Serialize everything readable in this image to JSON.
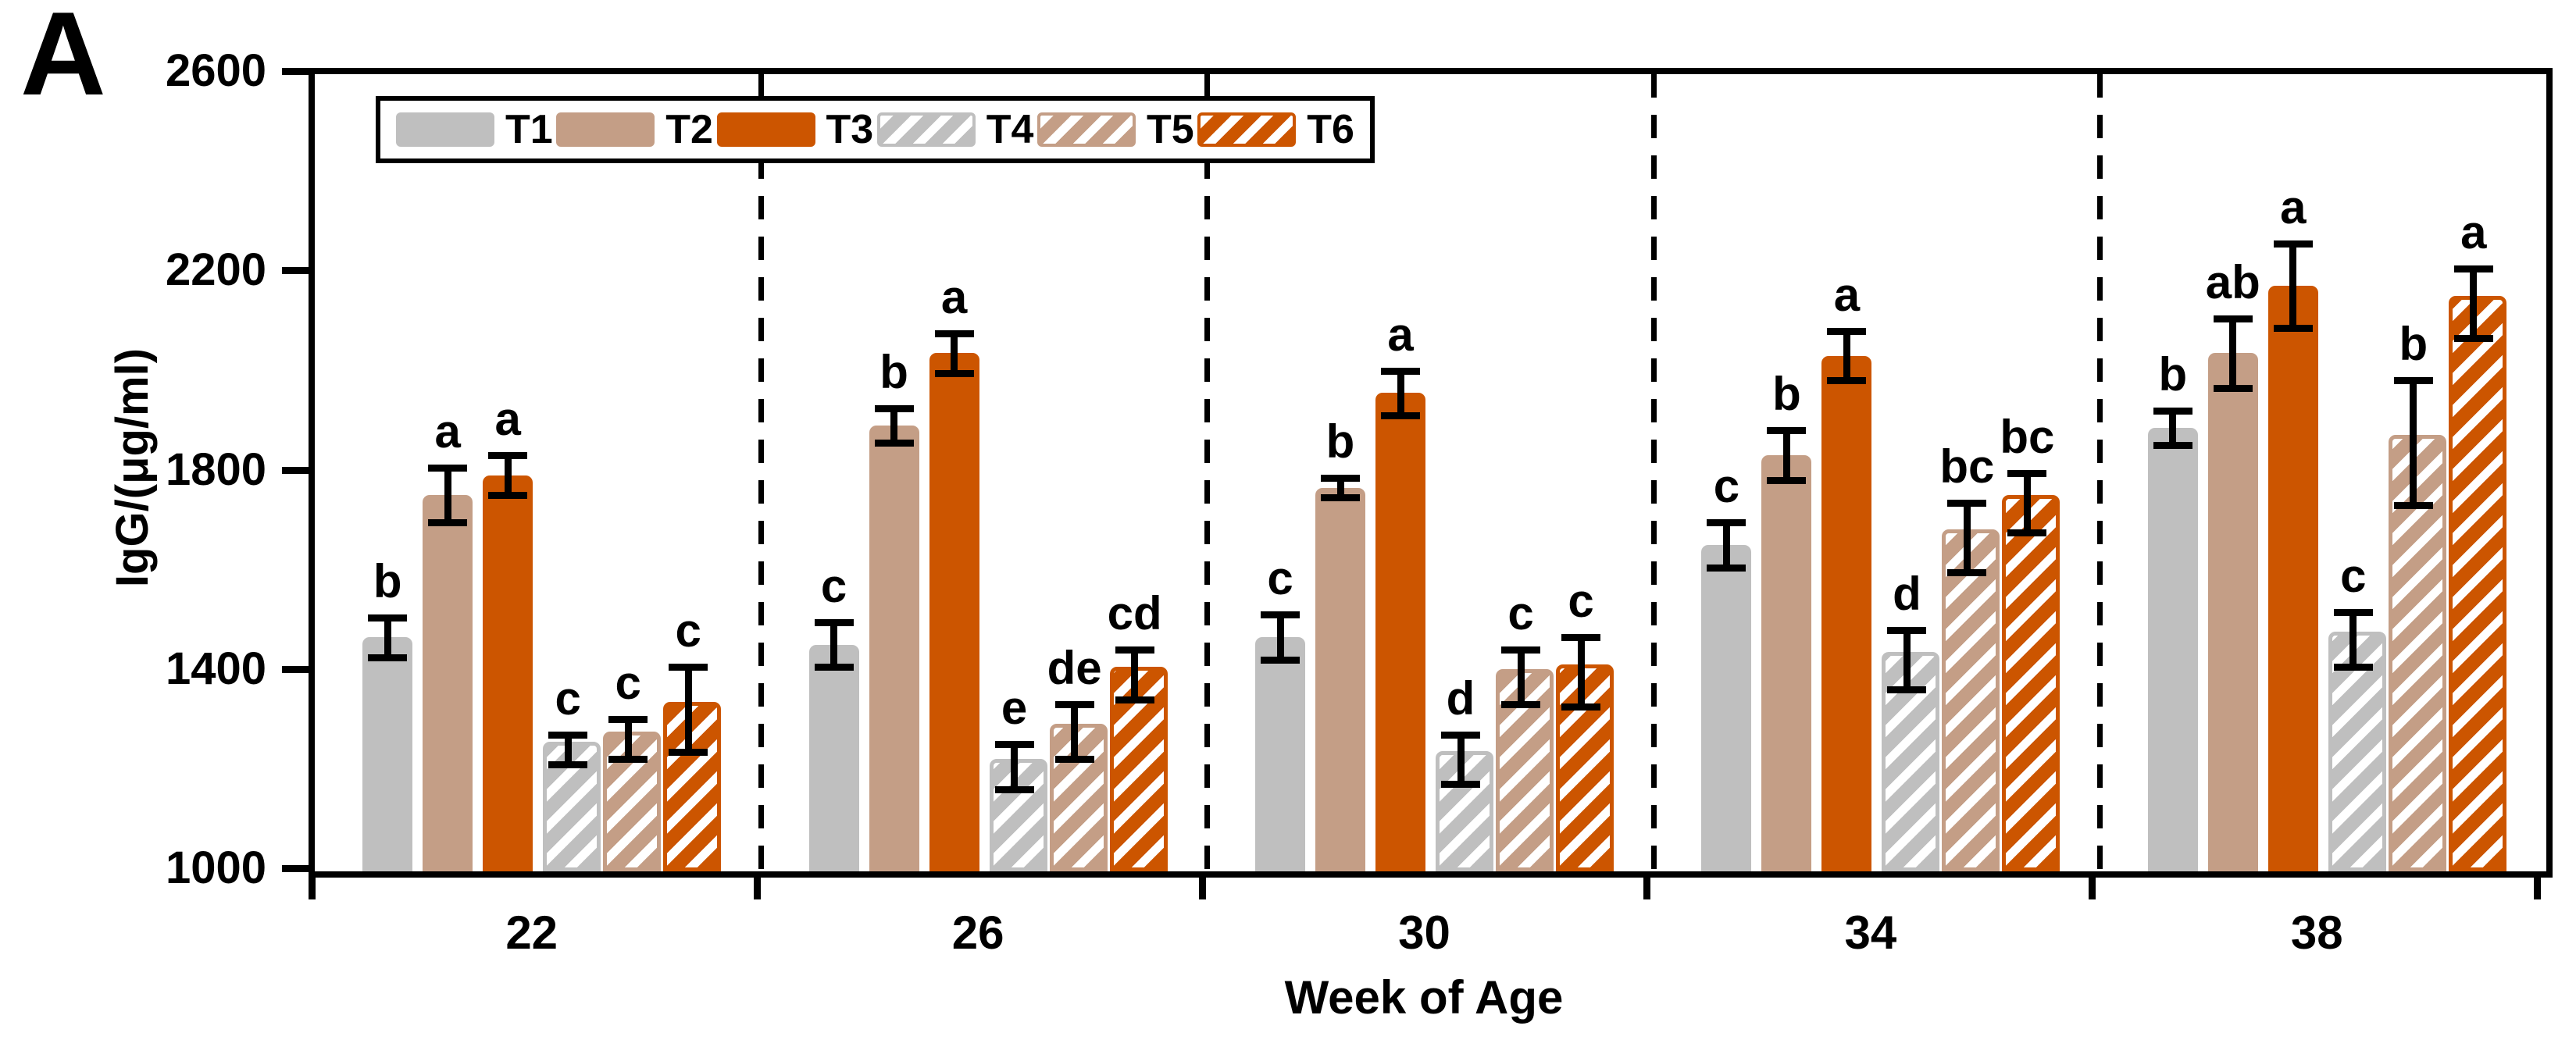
{
  "panel_label": "A",
  "chart_data": {
    "type": "bar",
    "title": "",
    "xlabel": "Week of Age",
    "ylabel": "IgG/(μg/ml)",
    "ylim": [
      1000,
      2600
    ],
    "yticks": [
      "2600",
      "2200",
      "1800",
      "1400",
      "1000"
    ],
    "ytick_values": [
      2600,
      2200,
      1800,
      1400,
      1000
    ],
    "categories": [
      "22",
      "26",
      "30",
      "34",
      "38"
    ],
    "grid": "off",
    "legend_position": "top-left-inside",
    "group_separator_style": "dashed",
    "series": [
      {
        "name": "T1",
        "style": "solid",
        "color": "#BFBFBF",
        "values": [
          1470,
          1455,
          1470,
          1655,
          1890
        ],
        "errors": [
          40,
          45,
          45,
          45,
          35
        ],
        "letters": [
          "b",
          "c",
          "c",
          "c",
          "b"
        ]
      },
      {
        "name": "T2",
        "style": "solid",
        "color": "#C49E86",
        "values": [
          1755,
          1895,
          1770,
          1835,
          2040
        ],
        "errors": [
          55,
          35,
          20,
          50,
          70
        ],
        "letters": [
          "a",
          "b",
          "b",
          "b",
          "ab"
        ]
      },
      {
        "name": "T3",
        "style": "solid",
        "color": "#CC5500",
        "values": [
          1795,
          2040,
          1960,
          2035,
          2175
        ],
        "errors": [
          40,
          40,
          45,
          50,
          85
        ],
        "letters": [
          "a",
          "a",
          "a",
          "a",
          "a"
        ]
      },
      {
        "name": "T4",
        "style": "hatched",
        "color": "#BFBFBF",
        "values": [
          1245,
          1210,
          1225,
          1425,
          1465
        ],
        "errors": [
          30,
          45,
          50,
          60,
          55
        ],
        "letters": [
          "c",
          "e",
          "d",
          "d",
          "c"
        ]
      },
      {
        "name": "T5",
        "style": "hatched",
        "color": "#C49E86",
        "values": [
          1265,
          1280,
          1390,
          1670,
          1860
        ],
        "errors": [
          40,
          55,
          55,
          70,
          125
        ],
        "letters": [
          "c",
          "de",
          "c",
          "bc",
          "b"
        ]
      },
      {
        "name": "T6",
        "style": "hatched",
        "color": "#CC5500",
        "values": [
          1325,
          1395,
          1400,
          1740,
          2140
        ],
        "errors": [
          85,
          50,
          70,
          60,
          70
        ],
        "letters": [
          "c",
          "cd",
          "c",
          "bc",
          "a"
        ]
      }
    ]
  },
  "colors": {
    "axis": "#000000",
    "background": "#ffffff",
    "gray": "#BFBFBF",
    "tan": "#C49E86",
    "orange": "#CC5500"
  }
}
